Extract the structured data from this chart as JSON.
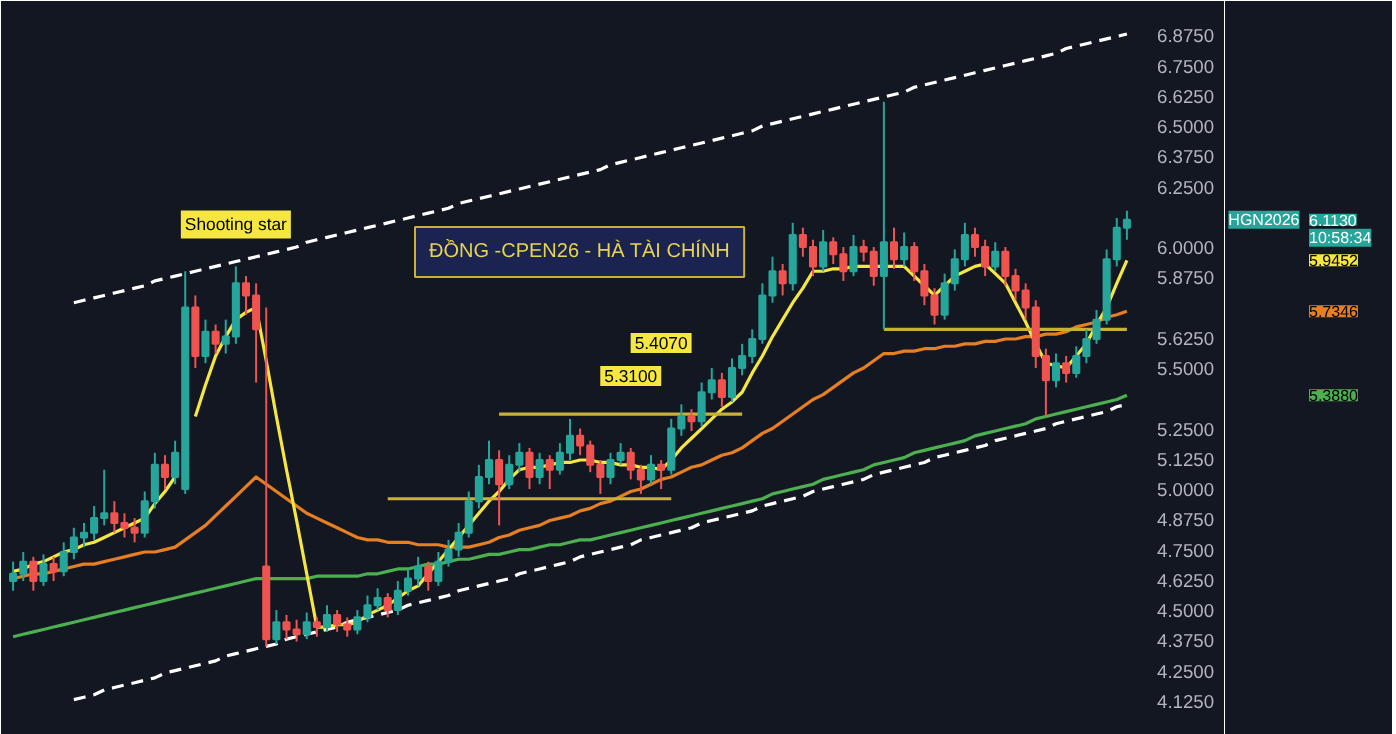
{
  "chart_data": {
    "type": "candlestick",
    "title": "ĐỒNG -CPEN26 - HÀ TÀI CHÍNH",
    "categories": [
      null,
      null,
      null,
      null,
      null,
      null,
      null,
      null,
      null,
      null,
      null,
      null,
      null,
      null,
      null,
      null,
      null,
      null,
      null,
      null,
      null,
      null,
      null,
      null,
      null,
      null,
      null,
      null,
      null,
      null,
      null,
      null,
      null,
      null,
      null,
      null,
      null,
      null,
      null,
      null,
      null,
      null,
      null,
      null,
      null,
      null,
      null,
      null,
      null,
      null,
      null,
      null,
      null,
      null,
      null,
      null,
      null,
      null,
      null,
      null,
      null,
      null,
      null,
      null,
      null,
      null,
      null,
      null,
      null,
      null,
      null,
      null,
      null,
      null,
      null,
      null,
      null,
      null,
      null,
      null,
      null,
      null,
      null,
      null,
      null,
      null,
      null,
      null,
      null,
      null,
      null,
      null,
      null,
      null,
      null,
      null,
      null,
      null,
      null,
      null,
      null,
      null,
      null,
      null,
      null,
      null,
      null,
      null,
      null,
      null,
      null
    ],
    "ohlc": [
      [
        4.62,
        4.7,
        4.58,
        4.65
      ],
      [
        4.65,
        4.74,
        4.62,
        4.7
      ],
      [
        4.7,
        4.72,
        4.58,
        4.62
      ],
      [
        4.62,
        4.73,
        4.6,
        4.69
      ],
      [
        4.69,
        4.72,
        4.62,
        4.66
      ],
      [
        4.66,
        4.78,
        4.64,
        4.74
      ],
      [
        4.74,
        4.84,
        4.71,
        4.8
      ],
      [
        4.8,
        4.86,
        4.76,
        4.82
      ],
      [
        4.82,
        4.93,
        4.79,
        4.88
      ],
      [
        4.88,
        5.08,
        4.85,
        4.9
      ],
      [
        4.9,
        4.95,
        4.82,
        4.86
      ],
      [
        4.86,
        4.9,
        4.8,
        4.84
      ],
      [
        4.84,
        4.88,
        4.78,
        4.82
      ],
      [
        4.82,
        4.99,
        4.8,
        4.95
      ],
      [
        4.95,
        5.15,
        4.92,
        5.1
      ],
      [
        5.1,
        5.14,
        5.0,
        5.05
      ],
      [
        5.05,
        5.2,
        5.02,
        5.15
      ],
      [
        5.0,
        5.9,
        4.98,
        5.75
      ],
      [
        5.75,
        5.8,
        5.5,
        5.55
      ],
      [
        5.55,
        5.7,
        5.52,
        5.65
      ],
      [
        5.65,
        5.68,
        5.56,
        5.6
      ],
      [
        5.6,
        5.7,
        5.56,
        5.63
      ],
      [
        5.63,
        5.92,
        5.6,
        5.85
      ],
      [
        5.85,
        5.88,
        5.72,
        5.8
      ],
      [
        5.8,
        5.85,
        5.44,
        5.66
      ],
      [
        4.68,
        5.75,
        4.35,
        4.38
      ],
      [
        4.38,
        4.5,
        4.36,
        4.45
      ],
      [
        4.45,
        4.48,
        4.38,
        4.42
      ],
      [
        4.42,
        4.46,
        4.37,
        4.4
      ],
      [
        4.4,
        4.49,
        4.38,
        4.45
      ],
      [
        4.45,
        4.47,
        4.39,
        4.43
      ],
      [
        4.43,
        4.52,
        4.41,
        4.48
      ],
      [
        4.48,
        4.5,
        4.41,
        4.44
      ],
      [
        4.44,
        4.47,
        4.39,
        4.42
      ],
      [
        4.42,
        4.5,
        4.4,
        4.47
      ],
      [
        4.47,
        4.56,
        4.45,
        4.52
      ],
      [
        4.52,
        4.59,
        4.5,
        4.55
      ],
      [
        4.55,
        4.57,
        4.47,
        4.5
      ],
      [
        4.5,
        4.62,
        4.48,
        4.58
      ],
      [
        4.58,
        4.67,
        4.56,
        4.63
      ],
      [
        4.63,
        4.72,
        4.6,
        4.68
      ],
      [
        4.68,
        4.7,
        4.58,
        4.62
      ],
      [
        4.62,
        4.74,
        4.6,
        4.7
      ],
      [
        4.7,
        4.79,
        4.68,
        4.75
      ],
      [
        4.75,
        4.86,
        4.72,
        4.82
      ],
      [
        4.82,
        4.99,
        4.8,
        4.95
      ],
      [
        4.95,
        5.1,
        4.92,
        5.05
      ],
      [
        5.05,
        5.2,
        5.02,
        5.12
      ],
      [
        5.12,
        5.16,
        4.85,
        5.02
      ],
      [
        5.02,
        5.14,
        5.0,
        5.1
      ],
      [
        5.1,
        5.19,
        5.07,
        5.15
      ],
      [
        5.15,
        5.17,
        5.0,
        5.05
      ],
      [
        5.05,
        5.15,
        5.02,
        5.12
      ],
      [
        5.12,
        5.14,
        5.0,
        5.08
      ],
      [
        5.08,
        5.19,
        5.06,
        5.15
      ],
      [
        5.15,
        5.29,
        5.12,
        5.22
      ],
      [
        5.22,
        5.25,
        5.14,
        5.18
      ],
      [
        5.18,
        5.2,
        5.07,
        5.1
      ],
      [
        5.1,
        5.12,
        4.98,
        5.05
      ],
      [
        5.05,
        5.15,
        5.02,
        5.12
      ],
      [
        5.12,
        5.19,
        5.1,
        5.15
      ],
      [
        5.15,
        5.17,
        5.04,
        5.08
      ],
      [
        5.08,
        5.1,
        4.98,
        5.04
      ],
      [
        5.04,
        5.14,
        5.02,
        5.1
      ],
      [
        5.1,
        5.12,
        5.0,
        5.08
      ],
      [
        5.08,
        5.29,
        5.06,
        5.25
      ],
      [
        5.25,
        5.35,
        5.22,
        5.3
      ],
      [
        5.3,
        5.33,
        5.24,
        5.28
      ],
      [
        5.28,
        5.44,
        5.26,
        5.4
      ],
      [
        5.4,
        5.5,
        5.37,
        5.45
      ],
      [
        5.45,
        5.48,
        5.34,
        5.38
      ],
      [
        5.38,
        5.54,
        5.36,
        5.5
      ],
      [
        5.5,
        5.6,
        5.47,
        5.55
      ],
      [
        5.55,
        5.66,
        5.52,
        5.62
      ],
      [
        5.62,
        5.85,
        5.6,
        5.8
      ],
      [
        5.8,
        5.96,
        5.77,
        5.9
      ],
      [
        5.9,
        5.93,
        5.8,
        5.85
      ],
      [
        5.85,
        6.1,
        5.82,
        6.05
      ],
      [
        6.05,
        6.08,
        5.96,
        6.0
      ],
      [
        6.0,
        6.03,
        5.88,
        5.92
      ],
      [
        5.92,
        6.07,
        5.9,
        6.02
      ],
      [
        6.02,
        6.04,
        5.93,
        5.97
      ],
      [
        5.97,
        6.0,
        5.86,
        5.9
      ],
      [
        5.9,
        6.05,
        5.88,
        6.0
      ],
      [
        6.0,
        6.03,
        5.94,
        5.98
      ],
      [
        5.98,
        6.0,
        5.84,
        5.88
      ],
      [
        5.88,
        6.6,
        5.66,
        6.02
      ],
      [
        6.02,
        6.08,
        5.91,
        5.95
      ],
      [
        5.95,
        6.06,
        5.92,
        6.0
      ],
      [
        6.0,
        6.02,
        5.86,
        5.9
      ],
      [
        5.9,
        5.93,
        5.76,
        5.8
      ],
      [
        5.8,
        5.83,
        5.68,
        5.72
      ],
      [
        5.72,
        5.89,
        5.7,
        5.85
      ],
      [
        5.85,
        5.99,
        5.82,
        5.95
      ],
      [
        5.95,
        6.1,
        5.92,
        6.05
      ],
      [
        6.05,
        6.08,
        5.96,
        6.0
      ],
      [
        6.0,
        6.03,
        5.88,
        5.92
      ],
      [
        5.92,
        6.02,
        5.9,
        5.98
      ],
      [
        5.98,
        6.0,
        5.84,
        5.88
      ],
      [
        5.88,
        5.91,
        5.78,
        5.82
      ],
      [
        5.82,
        5.85,
        5.7,
        5.75
      ],
      [
        5.75,
        5.78,
        5.5,
        5.55
      ],
      [
        5.55,
        5.58,
        5.3,
        5.45
      ],
      [
        5.45,
        5.56,
        5.42,
        5.52
      ],
      [
        5.52,
        5.55,
        5.44,
        5.48
      ],
      [
        5.48,
        5.59,
        5.46,
        5.55
      ],
      [
        5.55,
        5.66,
        5.52,
        5.62
      ],
      [
        5.62,
        5.74,
        5.6,
        5.7
      ],
      [
        5.7,
        5.99,
        5.68,
        5.95
      ],
      [
        5.95,
        6.12,
        5.92,
        6.08
      ],
      [
        6.08,
        6.15,
        6.03,
        6.113
      ]
    ],
    "series": [
      {
        "type": "line",
        "color": "#ffffff",
        "line_style": "dashed",
        "values": [
          null,
          null,
          null,
          null,
          null,
          null,
          5.77,
          5.78,
          5.79,
          5.8,
          5.81,
          5.82,
          5.83,
          5.84,
          5.86,
          5.87,
          5.88,
          5.89,
          5.9,
          5.91,
          5.92,
          5.93,
          5.94,
          5.95,
          5.96,
          5.97,
          5.98,
          5.99,
          6.0,
          6.02,
          6.03,
          6.04,
          6.05,
          6.06,
          6.07,
          6.08,
          6.09,
          6.1,
          6.11,
          6.12,
          6.13,
          6.14,
          6.15,
          6.16,
          6.18,
          6.19,
          6.2,
          6.21,
          6.22,
          6.23,
          6.24,
          6.25,
          6.26,
          6.27,
          6.28,
          6.29,
          6.3,
          6.31,
          6.32,
          6.34,
          6.35,
          6.36,
          6.37,
          6.38,
          6.39,
          6.4,
          6.41,
          6.42,
          6.43,
          6.44,
          6.45,
          6.46,
          6.47,
          6.48,
          6.5,
          6.51,
          6.52,
          6.53,
          6.54,
          6.55,
          6.56,
          6.57,
          6.58,
          6.59,
          6.6,
          6.61,
          6.62,
          6.63,
          6.64,
          6.66,
          6.67,
          6.68,
          6.69,
          6.7,
          6.71,
          6.72,
          6.73,
          6.74,
          6.75,
          6.76,
          6.77,
          6.78,
          6.79,
          6.8,
          6.82,
          6.83,
          6.84,
          6.85,
          6.86,
          6.87,
          6.88
        ]
      },
      {
        "type": "line",
        "color": "#ffffff",
        "line_style": "dashed",
        "values": [
          null,
          null,
          null,
          null,
          null,
          null,
          4.13,
          4.14,
          4.15,
          4.17,
          4.18,
          4.19,
          4.2,
          4.21,
          4.22,
          4.24,
          4.25,
          4.26,
          4.27,
          4.28,
          4.29,
          4.31,
          4.32,
          4.33,
          4.34,
          4.35,
          4.36,
          4.38,
          4.39,
          4.4,
          4.41,
          4.42,
          4.43,
          4.45,
          4.46,
          4.47,
          4.48,
          4.49,
          4.5,
          4.52,
          4.53,
          4.54,
          4.55,
          4.56,
          4.58,
          4.59,
          4.6,
          4.61,
          4.62,
          4.63,
          4.65,
          4.66,
          4.67,
          4.68,
          4.69,
          4.7,
          4.72,
          4.73,
          4.74,
          4.75,
          4.76,
          4.77,
          4.79,
          4.8,
          4.81,
          4.82,
          4.83,
          4.84,
          4.86,
          4.87,
          4.88,
          4.89,
          4.9,
          4.91,
          4.93,
          4.94,
          4.95,
          4.96,
          4.97,
          4.99,
          5.0,
          5.01,
          5.02,
          5.03,
          5.04,
          5.06,
          5.07,
          5.08,
          5.09,
          5.1,
          5.11,
          5.13,
          5.14,
          5.15,
          5.16,
          5.17,
          5.18,
          5.2,
          5.21,
          5.22,
          5.23,
          5.24,
          5.25,
          5.27,
          5.28,
          5.29,
          5.3,
          5.31,
          5.32,
          5.34,
          5.35
        ]
      },
      {
        "type": "line",
        "color": "#4caf50",
        "values": [
          4.39,
          4.4,
          4.41,
          4.42,
          4.43,
          4.44,
          4.45,
          4.46,
          4.47,
          4.48,
          4.49,
          4.5,
          4.51,
          4.52,
          4.53,
          4.54,
          4.55,
          4.56,
          4.57,
          4.58,
          4.59,
          4.6,
          4.61,
          4.62,
          4.63,
          4.63,
          4.63,
          4.63,
          4.63,
          4.63,
          4.64,
          4.64,
          4.64,
          4.64,
          4.64,
          4.65,
          4.65,
          4.66,
          4.67,
          4.67,
          4.68,
          4.69,
          4.69,
          4.7,
          4.71,
          4.71,
          4.72,
          4.73,
          4.73,
          4.74,
          4.75,
          4.75,
          4.76,
          4.77,
          4.77,
          4.78,
          4.79,
          4.79,
          4.8,
          4.81,
          4.82,
          4.83,
          4.84,
          4.85,
          4.86,
          4.87,
          4.88,
          4.89,
          4.9,
          4.91,
          4.92,
          4.93,
          4.94,
          4.95,
          4.96,
          4.98,
          4.99,
          5.0,
          5.01,
          5.02,
          5.04,
          5.05,
          5.06,
          5.07,
          5.08,
          5.1,
          5.11,
          5.12,
          5.13,
          5.15,
          5.16,
          5.17,
          5.18,
          5.19,
          5.2,
          5.22,
          5.23,
          5.24,
          5.25,
          5.26,
          5.27,
          5.29,
          5.3,
          5.31,
          5.32,
          5.33,
          5.34,
          5.35,
          5.36,
          5.37,
          5.388
        ]
      },
      {
        "type": "line",
        "color": "#e67e22",
        "values": [
          4.63,
          4.64,
          4.65,
          4.65,
          4.66,
          4.67,
          4.68,
          4.69,
          4.69,
          4.7,
          4.71,
          4.72,
          4.73,
          4.74,
          4.74,
          4.75,
          4.76,
          4.79,
          4.82,
          4.85,
          4.89,
          4.93,
          4.97,
          5.01,
          5.05,
          5.02,
          4.99,
          4.96,
          4.93,
          4.9,
          4.88,
          4.86,
          4.84,
          4.82,
          4.8,
          4.79,
          4.79,
          4.78,
          4.78,
          4.78,
          4.77,
          4.77,
          4.77,
          4.76,
          4.76,
          4.76,
          4.77,
          4.78,
          4.8,
          4.81,
          4.83,
          4.84,
          4.85,
          4.87,
          4.88,
          4.89,
          4.91,
          4.92,
          4.94,
          4.95,
          4.97,
          4.99,
          5.0,
          5.02,
          5.04,
          5.05,
          5.07,
          5.09,
          5.1,
          5.12,
          5.14,
          5.15,
          5.17,
          5.2,
          5.23,
          5.25,
          5.28,
          5.31,
          5.34,
          5.37,
          5.39,
          5.42,
          5.45,
          5.48,
          5.5,
          5.53,
          5.56,
          5.56,
          5.57,
          5.57,
          5.58,
          5.58,
          5.59,
          5.59,
          5.6,
          5.6,
          5.61,
          5.61,
          5.62,
          5.62,
          5.63,
          5.63,
          5.64,
          5.64,
          5.65,
          5.67,
          5.68,
          5.69,
          5.71,
          5.72,
          5.7346
        ]
      },
      {
        "type": "line",
        "color": "#f5e642",
        "values": [
          4.66,
          4.67,
          4.69,
          4.7,
          4.72,
          4.74,
          4.75,
          4.77,
          4.78,
          4.8,
          4.82,
          4.84,
          4.86,
          4.88,
          4.94,
          4.99,
          5.05,
          null,
          5.3,
          5.43,
          5.55,
          5.63,
          5.7,
          5.73,
          5.75,
          5.53,
          5.3,
          5.08,
          4.87,
          4.65,
          4.43,
          4.43,
          4.44,
          4.44,
          4.45,
          4.48,
          4.5,
          4.52,
          4.55,
          4.58,
          4.6,
          4.65,
          4.7,
          4.75,
          4.8,
          4.85,
          4.9,
          4.95,
          4.99,
          5.04,
          5.08,
          5.09,
          5.09,
          5.1,
          5.11,
          5.11,
          5.12,
          5.12,
          5.11,
          5.11,
          5.1,
          5.1,
          5.09,
          5.09,
          5.08,
          5.12,
          5.17,
          5.21,
          5.25,
          5.29,
          5.33,
          5.36,
          5.4,
          5.48,
          5.55,
          5.63,
          5.7,
          5.77,
          5.83,
          5.9,
          5.9,
          5.91,
          5.91,
          5.92,
          5.92,
          5.92,
          5.92,
          5.92,
          5.92,
          5.88,
          5.84,
          5.8,
          5.84,
          5.88,
          5.9,
          5.92,
          5.93,
          5.89,
          5.85,
          5.77,
          5.69,
          5.6,
          5.52,
          5.51,
          5.5,
          5.55,
          5.6,
          5.68,
          5.75,
          5.85,
          5.9452
        ]
      },
      {
        "type": "line",
        "color": "#c9b037",
        "values": [
          null,
          null,
          null,
          null,
          null,
          null,
          null,
          null,
          null,
          null,
          null,
          null,
          null,
          null,
          null,
          null,
          null,
          null,
          null,
          null,
          null,
          null,
          null,
          null,
          null,
          null,
          null,
          null,
          null,
          null,
          null,
          null,
          null,
          null,
          null,
          null,
          null,
          4.96,
          4.96,
          4.96,
          4.96,
          4.96,
          4.96,
          4.96,
          4.96,
          4.96,
          4.96,
          4.96,
          4.96,
          4.96,
          4.96,
          4.96,
          4.96,
          4.96,
          4.96,
          4.96,
          4.96,
          4.96,
          4.96,
          4.96,
          4.96,
          4.96,
          4.96,
          4.96,
          4.96,
          4.96,
          null,
          null,
          null,
          null,
          null,
          null,
          null,
          null,
          null,
          null,
          null,
          null,
          null,
          null,
          null,
          null,
          null,
          null,
          null,
          null,
          null,
          null,
          null,
          null,
          null,
          null,
          null,
          null,
          null,
          null,
          null,
          null,
          null,
          null,
          null,
          null,
          null,
          null,
          null,
          null,
          null,
          null,
          null,
          null,
          null
        ]
      },
      {
        "type": "line",
        "color": "#c9b037",
        "values": [
          null,
          null,
          null,
          null,
          null,
          null,
          null,
          null,
          null,
          null,
          null,
          null,
          null,
          null,
          null,
          null,
          null,
          null,
          null,
          null,
          null,
          null,
          null,
          null,
          null,
          null,
          null,
          null,
          null,
          null,
          null,
          null,
          null,
          null,
          null,
          null,
          null,
          null,
          null,
          null,
          null,
          null,
          null,
          null,
          null,
          null,
          null,
          null,
          5.31,
          5.31,
          5.31,
          5.31,
          5.31,
          5.31,
          5.31,
          5.31,
          5.31,
          5.31,
          5.31,
          5.31,
          5.31,
          5.31,
          5.31,
          5.31,
          5.31,
          5.31,
          5.31,
          5.31,
          5.31,
          5.31,
          5.31,
          5.31,
          5.31,
          null,
          null,
          null,
          null,
          null,
          null,
          null,
          null,
          null,
          null,
          null,
          null,
          null,
          null,
          null,
          null,
          null,
          null,
          null,
          null,
          null,
          null,
          null,
          null,
          null,
          null,
          null,
          null,
          null,
          null,
          null,
          null,
          null,
          null,
          null,
          null,
          null,
          null
        ]
      },
      {
        "type": "line",
        "color": "#c9b037",
        "values": [
          null,
          null,
          null,
          null,
          null,
          null,
          null,
          null,
          null,
          null,
          null,
          null,
          null,
          null,
          null,
          null,
          null,
          null,
          null,
          null,
          null,
          null,
          null,
          null,
          null,
          null,
          null,
          null,
          null,
          null,
          null,
          null,
          null,
          null,
          null,
          null,
          null,
          null,
          null,
          null,
          null,
          null,
          null,
          null,
          null,
          null,
          null,
          null,
          null,
          null,
          null,
          null,
          null,
          null,
          null,
          null,
          null,
          null,
          null,
          null,
          null,
          null,
          null,
          null,
          null,
          null,
          null,
          null,
          null,
          null,
          null,
          null,
          null,
          null,
          null,
          null,
          null,
          null,
          null,
          null,
          null,
          null,
          null,
          null,
          null,
          null,
          5.66,
          5.66,
          5.66,
          5.66,
          5.66,
          5.66,
          5.66,
          5.66,
          5.66,
          5.66,
          5.66,
          5.66,
          5.66,
          5.66,
          5.66,
          5.66,
          5.66,
          5.66,
          5.66,
          5.66,
          5.66,
          5.66,
          5.66,
          5.66,
          5.66
        ]
      }
    ],
    "annotations": [
      {
        "text": "Shooting star",
        "y": 5.92
      },
      {
        "text": "5.3100",
        "y": 5.31
      },
      "5.4070",
      "HGN2026",
      "6.1130",
      "10:58:34",
      "5.9452",
      "5.7346",
      "5.3880"
    ],
    "ylim": [
      4.05,
      7.0
    ],
    "yticks": [
      {
        "value": 4.125,
        "label": "4.1250"
      },
      {
        "value": 4.25,
        "label": "4.2500"
      },
      {
        "value": 4.375,
        "label": "4.3750"
      },
      {
        "value": 4.5,
        "label": "4.5000"
      },
      {
        "value": 4.625,
        "label": "4.6250"
      },
      {
        "value": 4.75,
        "label": "4.7500"
      },
      {
        "value": 4.875,
        "label": "4.8750"
      },
      {
        "value": 5.0,
        "label": "5.0000"
      },
      {
        "value": 5.125,
        "label": "5.1250"
      },
      {
        "value": 5.25,
        "label": "5.2500"
      },
      {
        "value": 5.5,
        "label": "5.5000"
      },
      {
        "value": 5.625,
        "label": "5.6250"
      },
      {
        "value": 5.875,
        "label": "5.8750"
      },
      {
        "value": 6.0,
        "label": "6.0000"
      },
      {
        "value": 6.25,
        "label": "6.2500"
      },
      {
        "value": 6.375,
        "label": "6.3750"
      },
      {
        "value": 6.5,
        "label": "6.5000"
      },
      {
        "value": 6.625,
        "label": "6.6250"
      },
      {
        "value": 6.75,
        "label": "6.7500"
      },
      {
        "value": 6.875,
        "label": "6.8750"
      }
    ],
    "tick_labels": "y",
    "grid": false
  }
}
